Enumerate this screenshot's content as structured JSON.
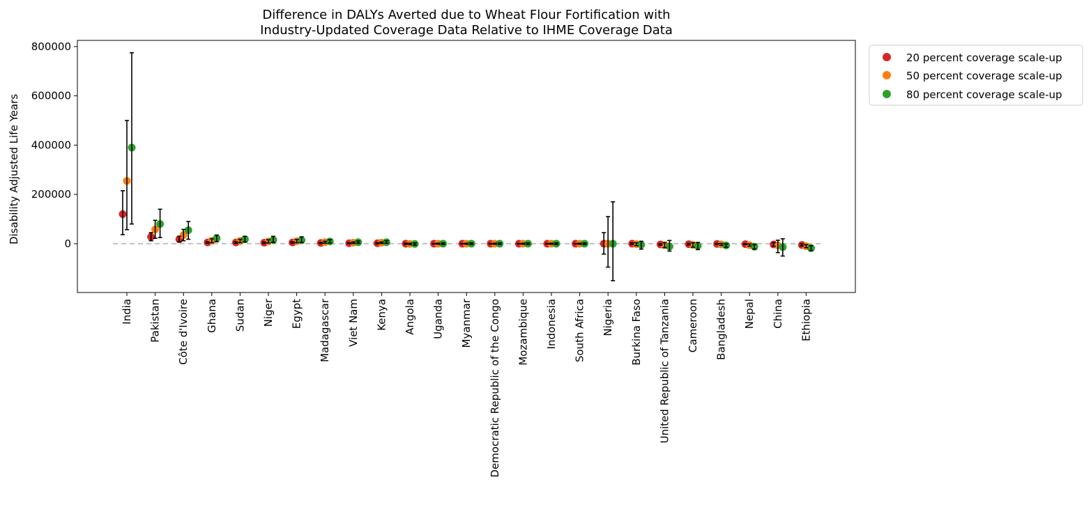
{
  "chart_data": {
    "type": "scatter",
    "title_lines": [
      "Difference in DALYs Averted due to Wheat Flour Fortification with",
      "Industry-Updated Coverage Data Relative to IHME Coverage Data"
    ],
    "xlabel": "",
    "ylabel": "Disability Adjusted Life Years",
    "ylim": [
      -198000,
      825000
    ],
    "yticks": [
      0,
      200000,
      400000,
      600000,
      800000
    ],
    "ytick_labels": [
      "0",
      "200000",
      "400000",
      "600000",
      "800000"
    ],
    "grid": false,
    "legend_position": "outside-top-right",
    "reference_line": {
      "y": 0,
      "style": "dashed",
      "color": "#c0c0c0"
    },
    "categories": [
      "India",
      "Pakistan",
      "Côte d'Ivoire",
      "Ghana",
      "Sudan",
      "Niger",
      "Egypt",
      "Madagascar",
      "Viet Nam",
      "Kenya",
      "Angola",
      "Uganda",
      "Myanmar",
      "Democratic Republic of the Congo",
      "Mozambique",
      "Indonesia",
      "South Africa",
      "Nigeria",
      "Burkina Faso",
      "United Republic of Tanzania",
      "Cameroon",
      "Bangladesh",
      "Nepal",
      "China",
      "Ethiopia"
    ],
    "series": [
      {
        "name": "20 percent coverage scale-up",
        "color": "#d62728",
        "values": [
          120000,
          28000,
          18000,
          5000,
          5000,
          4000,
          5000,
          3000,
          2000,
          2000,
          0,
          0,
          0,
          0,
          0,
          0,
          0,
          0,
          0,
          -3000,
          -2000,
          -1000,
          -2000,
          -3000,
          -5000
        ],
        "lower": [
          37000,
          12000,
          8000,
          2000,
          2000,
          1000,
          2000,
          1000,
          0,
          0,
          -2000,
          -1000,
          -1000,
          -1000,
          -1000,
          -1000,
          -1000,
          -42000,
          -3000,
          -6000,
          -5000,
          -3000,
          -4000,
          -10000,
          -9000
        ],
        "upper": [
          215000,
          45000,
          30000,
          8000,
          8000,
          7000,
          8000,
          5000,
          4000,
          4000,
          2000,
          1000,
          1000,
          1000,
          1000,
          1000,
          1000,
          45000,
          3000,
          0,
          1000,
          1000,
          0,
          4000,
          -1000
        ]
      },
      {
        "name": "50 percent coverage scale-up",
        "color": "#ff7f0e",
        "values": [
          255000,
          58000,
          35000,
          12000,
          11000,
          9000,
          10000,
          6000,
          4000,
          4000,
          -1000,
          0,
          0,
          0,
          0,
          0,
          0,
          0,
          -2000,
          -6000,
          -5000,
          -3000,
          -6000,
          -7000,
          -10000
        ],
        "lower": [
          57000,
          22000,
          12000,
          4000,
          4000,
          3000,
          4000,
          2000,
          1000,
          1000,
          -4000,
          -2000,
          -2000,
          -2000,
          -2000,
          -2000,
          -2000,
          -95000,
          -8000,
          -16000,
          -14000,
          -7000,
          -10000,
          -36000,
          -16000
        ],
        "upper": [
          500000,
          95000,
          58000,
          20000,
          18000,
          16000,
          17000,
          10000,
          7000,
          7000,
          2000,
          2000,
          2000,
          2000,
          2000,
          2000,
          2000,
          110000,
          4000,
          4000,
          4000,
          1000,
          -1000,
          14000,
          -4000
        ]
      },
      {
        "name": "80 percent coverage scale-up",
        "color": "#2ca02c",
        "values": [
          390000,
          80000,
          55000,
          22000,
          18000,
          15000,
          14000,
          9000,
          6000,
          6000,
          -1000,
          0,
          0,
          0,
          0,
          0,
          0,
          0,
          -4000,
          -11000,
          -9000,
          -7000,
          -12000,
          -14000,
          -18000
        ],
        "lower": [
          80000,
          25000,
          18000,
          8000,
          7000,
          5000,
          5000,
          3000,
          2000,
          2000,
          -6000,
          -3000,
          -3000,
          -3000,
          -3000,
          -3000,
          -3000,
          -150000,
          -22000,
          -30000,
          -24000,
          -14000,
          -22000,
          -50000,
          -28000
        ],
        "upper": [
          775000,
          140000,
          90000,
          35000,
          30000,
          30000,
          28000,
          16000,
          11000,
          12000,
          3000,
          3000,
          3000,
          3000,
          3000,
          3000,
          3000,
          170000,
          10000,
          13000,
          5000,
          -1000,
          -3000,
          20000,
          -8000
        ]
      }
    ]
  }
}
